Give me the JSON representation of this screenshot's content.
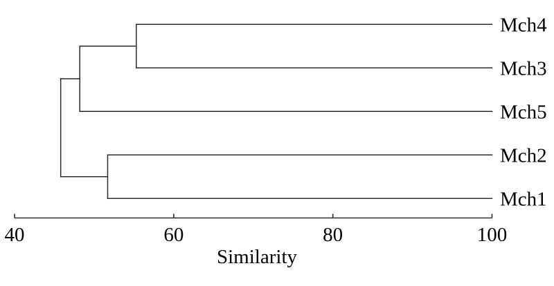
{
  "figure": {
    "background": "#ffffff",
    "line_color": "#2b2b2b",
    "text_color": "#000000"
  },
  "chart_data": {
    "type": "dendrogram",
    "orientation": "horizontal",
    "title": "",
    "xlabel": "Similarity",
    "axis": {
      "label": "Similarity",
      "ticks": [
        40,
        60,
        80,
        100
      ],
      "range": [
        40,
        100
      ]
    },
    "leaves": [
      "Mch4",
      "Mch3",
      "Mch5",
      "Mch2",
      "Mch1"
    ],
    "leaf_similarity": 100,
    "merges": [
      {
        "members": [
          "Mch4",
          "Mch3"
        ],
        "similarity": 55.3
      },
      {
        "members": [
          "Mch2",
          "Mch1"
        ],
        "similarity": 51.7
      },
      {
        "members": [
          "Mch4",
          "Mch3",
          "Mch5"
        ],
        "similarity": 48.2
      },
      {
        "members": [
          "Mch4",
          "Mch3",
          "Mch5",
          "Mch2",
          "Mch1"
        ],
        "similarity": 45.8
      }
    ],
    "tree": {
      "similarity": 45.8,
      "children": [
        {
          "similarity": 48.2,
          "children": [
            {
              "similarity": 55.3,
              "children": [
                {
                  "leaf": "Mch4"
                },
                {
                  "leaf": "Mch3"
                }
              ]
            },
            {
              "leaf": "Mch5"
            }
          ]
        },
        {
          "similarity": 51.7,
          "children": [
            {
              "leaf": "Mch2"
            },
            {
              "leaf": "Mch1"
            }
          ]
        }
      ]
    }
  }
}
